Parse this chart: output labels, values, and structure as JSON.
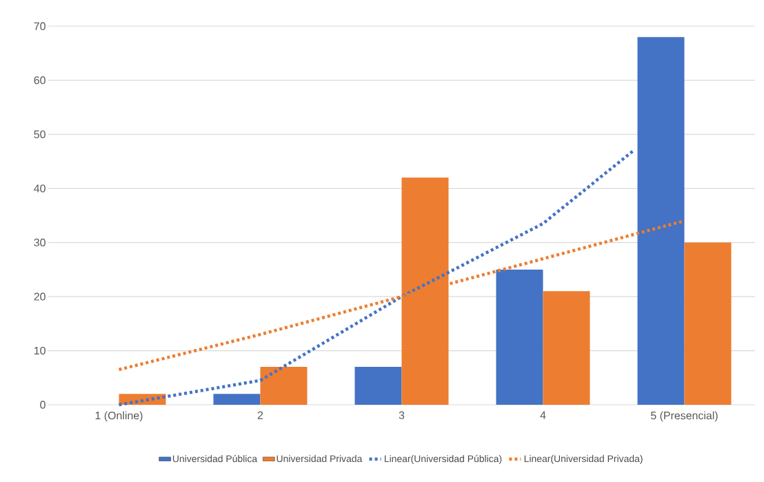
{
  "chart_data": {
    "type": "bar",
    "x": [
      1,
      2,
      3,
      4,
      5
    ],
    "series": [
      {
        "name": "Universidad Pública",
        "color": "#4472c4",
        "values": [
          0,
          2,
          7,
          25,
          68
        ]
      },
      {
        "name": "Universidad Privada",
        "color": "#ed7d31",
        "values": [
          2,
          7,
          42,
          21,
          30
        ]
      },
      {
        "name": "Linear(Universidad Pública)",
        "type": "line",
        "line_style": "dotted",
        "color": "#4472c4",
        "x": [
          1,
          2,
          3,
          4,
          4.64
        ],
        "values": [
          0,
          4.5,
          20,
          33.5,
          47
        ]
      },
      {
        "name": "Linear(Universidad Privada)",
        "type": "line",
        "line_style": "dotted",
        "color": "#ed7d31",
        "values": [
          6.5,
          13,
          20,
          27,
          34
        ]
      }
    ],
    "xlim": [
      0.5,
      5.5
    ],
    "xticks": [
      {
        "value": 1,
        "label": "1 (Online)"
      },
      2,
      3,
      4,
      {
        "value": 5,
        "label": "5 (Presencial)"
      }
    ],
    "ylim": [
      0,
      70
    ],
    "yticks": [
      0,
      10,
      20,
      30,
      40,
      50,
      60,
      70
    ],
    "grid": "y",
    "legend": "bottom"
  }
}
